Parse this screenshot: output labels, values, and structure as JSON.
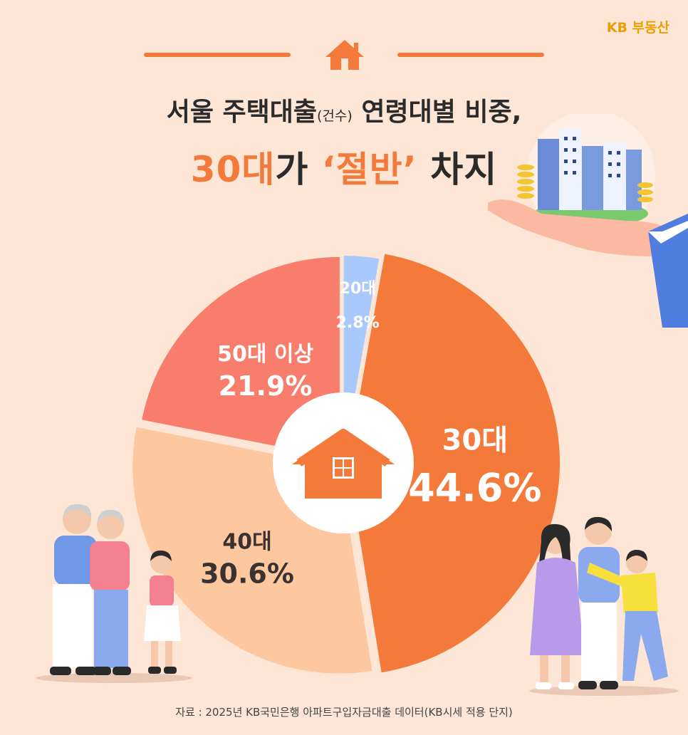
{
  "brand": "KB 부동산",
  "title": {
    "line1_a": "서울 주택대출",
    "line1_small": "(건수)",
    "line1_b": "연령대별 비중,",
    "line2_a": "30대",
    "line2_b": "가 ",
    "line2_c": "‘절반’",
    "line2_d": " 차지"
  },
  "source": "자료 : 2025년 KB국민은행 아파트구입자금대출 데이터(KB시세 적용 단지)",
  "icons": [
    "house-icon",
    "house-center-icon",
    "building-hand-illustration",
    "elderly-couple-illustration",
    "family-illustration"
  ],
  "chart_data": {
    "type": "pie",
    "categories": [
      "20대",
      "30대",
      "40대",
      "50대 이상"
    ],
    "values": [
      2.8,
      44.6,
      30.6,
      21.9
    ],
    "labels": [
      "2.8%",
      "44.6%",
      "30.6%",
      "21.9%"
    ],
    "colors": [
      "#a9c8fb",
      "#f47a3c",
      "#fdc7a0",
      "#f97d6c"
    ],
    "label_colors": [
      "#ffffff",
      "#ffffff",
      "#3a3230",
      "#ffffff"
    ],
    "title": "",
    "legend": "none"
  }
}
